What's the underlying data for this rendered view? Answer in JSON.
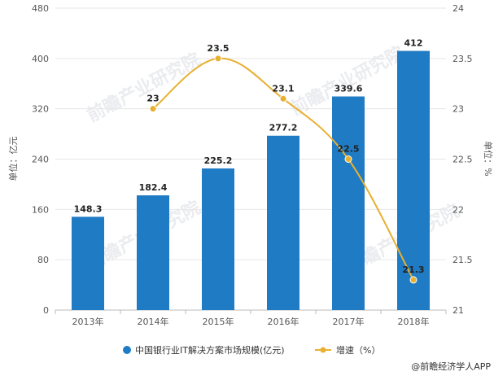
{
  "chart_data": {
    "type": "bar",
    "categories": [
      "2013年",
      "2014年",
      "2015年",
      "2016年",
      "2017年",
      "2018年"
    ],
    "series": [
      {
        "name": "中国银行业IT解决方案市场规模(亿元)",
        "type": "bar",
        "axis": "left",
        "color": "#1f7bc4",
        "values": [
          148.3,
          182.4,
          225.2,
          277.2,
          339.6,
          412
        ]
      },
      {
        "name": "增速（%）",
        "type": "line",
        "axis": "right",
        "color": "#e8b030",
        "values": [
          null,
          23,
          23.5,
          23.1,
          22.5,
          21.3
        ]
      }
    ],
    "bar_labels": [
      "148.3",
      "182.4",
      "225.2",
      "277.2",
      "339.6",
      "412"
    ],
    "line_labels": [
      "",
      "23",
      "23.5",
      "23.1",
      "22.5",
      "21.3"
    ],
    "y_left": {
      "label": "单位：亿元",
      "min": 0,
      "max": 480,
      "ticks": [
        "0",
        "80",
        "160",
        "240",
        "320",
        "400",
        "480"
      ]
    },
    "y_right": {
      "label": "单位：%",
      "min": 21,
      "max": 24,
      "ticks": [
        "21",
        "21.5",
        "22",
        "22.5",
        "23",
        "23.5",
        "24"
      ]
    },
    "legend": [
      "中国银行业IT解决方案市场规模(亿元)",
      "增速（%）"
    ],
    "legend_position": "bottom",
    "grid": true
  },
  "watermark": "前瞻产业研究院",
  "credit": "@前瞻经济学人APP"
}
